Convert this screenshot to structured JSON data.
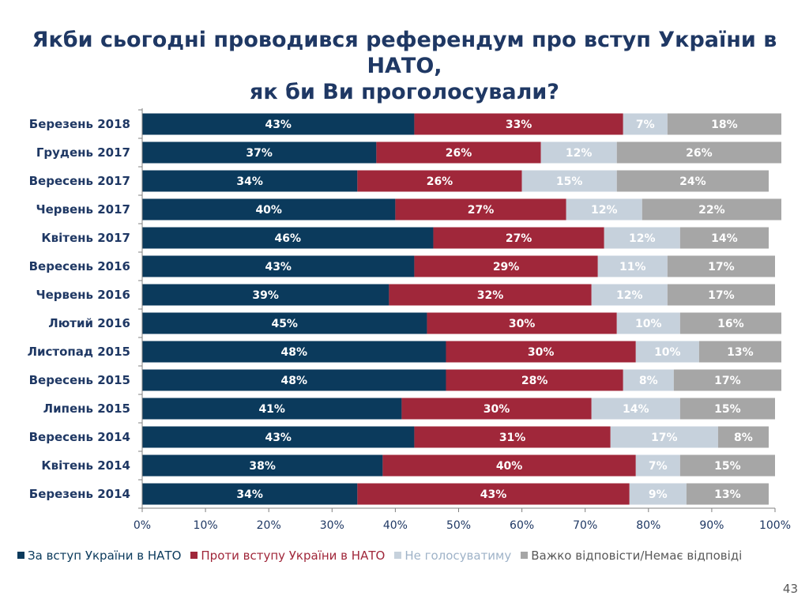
{
  "page": {
    "title_line1": "Якби сьогодні проводився референдум про вступ України в НАТО,",
    "title_line2": "як би Ви проголосували?",
    "page_number": "43"
  },
  "chart_data": {
    "type": "bar",
    "orientation": "horizontal",
    "stacked": true,
    "categories": [
      "Березень 2018",
      "Грудень 2017",
      "Вересень 2017",
      "Червень 2017",
      "Квітень 2017",
      "Вересень 2016",
      "Червень 2016",
      "Лютий 2016",
      "Листопад 2015",
      "Вересень 2015",
      "Липень 2015",
      "Вересень 2014",
      "Квітень 2014",
      "Березень 2014"
    ],
    "series": [
      {
        "name": "За вступ України в НАТО",
        "color": "#0b3a5c",
        "label_color": "#ffffff",
        "values": [
          43,
          37,
          34,
          40,
          46,
          43,
          39,
          45,
          48,
          48,
          41,
          43,
          38,
          34
        ]
      },
      {
        "name": "Проти вступу України в НАТО",
        "color": "#a0273a",
        "label_color": "#ffffff",
        "values": [
          33,
          26,
          26,
          27,
          27,
          29,
          32,
          30,
          30,
          28,
          30,
          31,
          40,
          43
        ]
      },
      {
        "name": "Не голосуватиму",
        "color": "#c6d1dc",
        "label_color": "#ffffff",
        "values": [
          7,
          12,
          15,
          12,
          12,
          11,
          12,
          10,
          10,
          8,
          14,
          17,
          7,
          9
        ]
      },
      {
        "name": "Важко відповісти/Немає відповіді",
        "color": "#a6a6a6",
        "label_color": "#ffffff",
        "values": [
          18,
          26,
          24,
          22,
          14,
          17,
          17,
          16,
          13,
          17,
          15,
          8,
          15,
          13
        ]
      }
    ],
    "xlim": [
      0,
      100
    ],
    "xticks": [
      "0%",
      "10%",
      "20%",
      "30%",
      "40%",
      "50%",
      "60%",
      "70%",
      "80%",
      "90%",
      "100%"
    ],
    "legend_position": "bottom",
    "grid": false
  }
}
